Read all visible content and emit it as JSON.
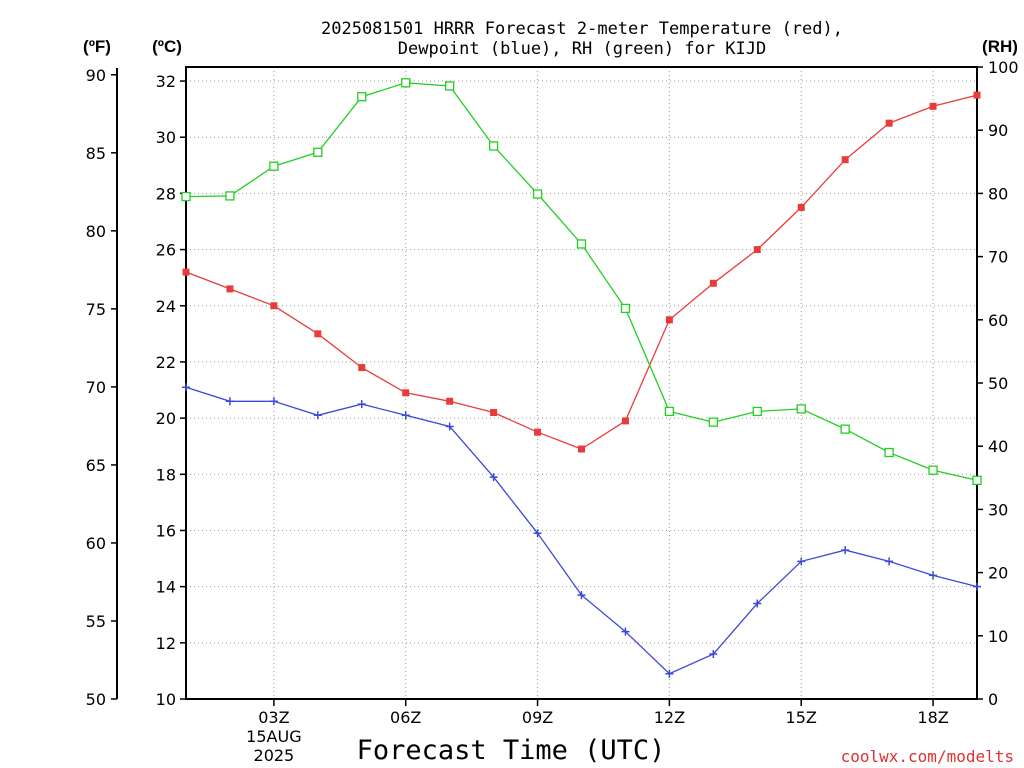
{
  "title_line1": "2025081501 HRRR Forecast 2-meter Temperature (red),",
  "title_line2": "Dewpoint (blue), RH (green) for KIJD",
  "unit_f": "(ºF)",
  "unit_c": "(ºC)",
  "unit_rh": "(RH)",
  "credit": "coolwx.com/modelts",
  "colors": {
    "temperature": "#e83c3c",
    "dewpoint": "#3a4ad8",
    "rh": "#22d022",
    "credit": "#e03030"
  },
  "chart_data": {
    "type": "line",
    "title": "2025081501 HRRR Forecast 2-meter Temperature (red), Dewpoint (blue), RH (green) for KIJD",
    "xlabel": "Forecast Time (UTC)",
    "x_hours": [
      1,
      2,
      3,
      4,
      5,
      6,
      7,
      8,
      9,
      10,
      11,
      12,
      13,
      14,
      15,
      16,
      17,
      18,
      19
    ],
    "xlim": [
      1,
      19
    ],
    "x_ticks": [
      {
        "hour": 3,
        "label": "03Z",
        "sub1": "15AUG",
        "sub2": "2025"
      },
      {
        "hour": 6,
        "label": "06Z"
      },
      {
        "hour": 9,
        "label": "09Z"
      },
      {
        "hour": 12,
        "label": "12Z"
      },
      {
        "hour": 15,
        "label": "15Z"
      },
      {
        "hour": 18,
        "label": "18Z"
      }
    ],
    "y_left_c": {
      "label": "(ºC)",
      "lim": [
        10,
        32.5
      ],
      "ticks": [
        "10",
        "12",
        "14",
        "16",
        "18",
        "20",
        "22",
        "24",
        "26",
        "28",
        "30",
        "32"
      ]
    },
    "y_left_f": {
      "label": "(ºF)",
      "ticks": [
        "50",
        "55",
        "60",
        "65",
        "70",
        "75",
        "80",
        "85",
        "90"
      ]
    },
    "y_right_rh": {
      "label": "(RH)",
      "lim": [
        0,
        100
      ],
      "ticks": [
        "0",
        "10",
        "20",
        "30",
        "40",
        "50",
        "60",
        "70",
        "80",
        "90",
        "100"
      ]
    },
    "series": [
      {
        "name": "Temperature",
        "axis": "celsius",
        "marker": "filled-square",
        "values": [
          25.2,
          24.6,
          24.0,
          23.0,
          21.8,
          20.9,
          20.6,
          20.2,
          19.5,
          18.9,
          19.9,
          23.5,
          24.8,
          26.0,
          27.5,
          29.2,
          30.5,
          31.1,
          31.5
        ]
      },
      {
        "name": "Dewpoint",
        "axis": "celsius",
        "marker": "plus",
        "values": [
          21.1,
          20.6,
          20.6,
          20.1,
          20.5,
          20.1,
          19.7,
          17.9,
          15.9,
          13.7,
          12.4,
          10.9,
          11.6,
          13.4,
          14.9,
          15.3,
          14.9,
          14.4,
          14.0
        ]
      },
      {
        "name": "RH",
        "axis": "rh",
        "marker": "open-square",
        "values": [
          79.5,
          79.6,
          84.3,
          86.5,
          95.3,
          97.5,
          97.0,
          87.5,
          79.9,
          72.0,
          61.8,
          45.5,
          43.8,
          45.5,
          45.9,
          42.7,
          39.0,
          36.2,
          34.6
        ]
      }
    ],
    "grid": true
  }
}
